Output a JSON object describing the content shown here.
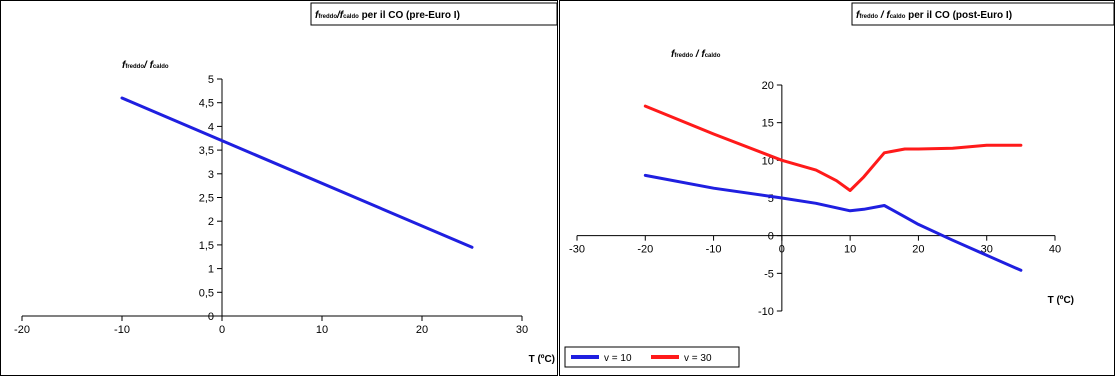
{
  "chart_data": [
    {
      "type": "line",
      "title": {
        "f1": "f",
        "sub1": "freddo",
        "mid": "/f",
        "sub2": "caldo",
        "rest": " per il CO (pre-Euro I)"
      },
      "ylabel": {
        "f1": "f",
        "sub1": "freddo",
        "mid": "/ f",
        "sub2": "caldo"
      },
      "xlabel": "T (ºC)",
      "xlim": [
        -20,
        30
      ],
      "ylim": [
        0,
        5
      ],
      "x_ticks": [
        "-20",
        "-10",
        "0",
        "10",
        "20",
        "30"
      ],
      "y_ticks": [
        "0",
        "0,5",
        "1",
        "1,5",
        "2",
        "2,5",
        "3",
        "3,5",
        "4",
        "4,5",
        "5"
      ],
      "series": [
        {
          "color": "#1f1fe0",
          "x": [
            -10,
            25
          ],
          "y": [
            4.6,
            1.45
          ]
        }
      ]
    },
    {
      "type": "line",
      "title": {
        "f1": "f",
        "sub1": "freddo",
        "mid": " / f",
        "sub2": "caldo",
        "rest": " per il CO (post-Euro I)"
      },
      "ylabel": {
        "f1": "f",
        "sub1": "freddo",
        "mid": " / f",
        "sub2": "caldo"
      },
      "xlabel": "T (ºC)",
      "xlim": [
        -30,
        40
      ],
      "ylim": [
        -10,
        20
      ],
      "x_ticks": [
        "-30",
        "-20",
        "-10",
        "0",
        "10",
        "20",
        "30",
        "40"
      ],
      "y_ticks": [
        "-10",
        "-5",
        "0",
        "5",
        "10",
        "15",
        "20"
      ],
      "series": [
        {
          "name": "v = 10",
          "color": "#1f1fe0",
          "x": [
            -20,
            -10,
            0,
            5,
            10,
            12,
            15,
            18,
            20,
            25,
            30,
            35
          ],
          "y": [
            8,
            6.3,
            5,
            4.3,
            3.3,
            3.5,
            4,
            2.5,
            1.5,
            -0.6,
            -2.6,
            -4.6
          ]
        },
        {
          "name": "v = 30",
          "color": "#ff1a1a",
          "x": [
            -20,
            -10,
            0,
            5,
            8,
            10,
            12,
            15,
            18,
            20,
            25,
            30,
            35
          ],
          "y": [
            17.2,
            13.5,
            10,
            8.7,
            7.3,
            6,
            7.8,
            11,
            11.5,
            11.5,
            11.6,
            12,
            12
          ]
        }
      ]
    }
  ]
}
